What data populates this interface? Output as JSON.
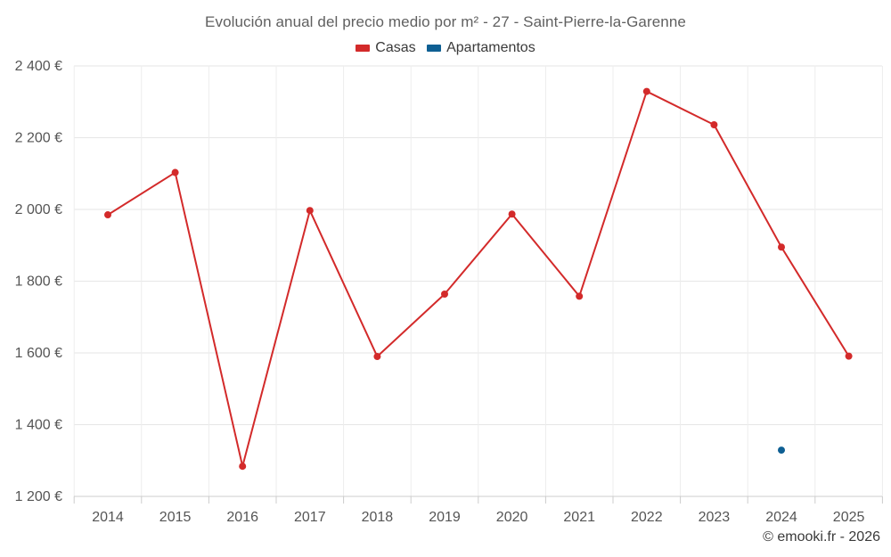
{
  "chart_data": {
    "type": "line",
    "title": "Evolución anual del precio medio por m² - 27 - Saint-Pierre-la-Garenne",
    "xlabel": "",
    "ylabel": "",
    "categories": [
      "2014",
      "2015",
      "2016",
      "2017",
      "2018",
      "2019",
      "2020",
      "2021",
      "2022",
      "2023",
      "2024",
      "2025"
    ],
    "series": [
      {
        "name": "Casas",
        "color": "#d32a2a",
        "values": [
          1985,
          2103,
          1284,
          1997,
          1590,
          1764,
          1987,
          1758,
          2329,
          2236,
          1895,
          1591
        ]
      },
      {
        "name": "Apartamentos",
        "color": "#0e5f93",
        "values": [
          null,
          null,
          null,
          null,
          null,
          null,
          null,
          null,
          null,
          null,
          1329,
          null
        ]
      }
    ],
    "ylim": [
      1200,
      2400
    ],
    "y_ticks": [
      {
        "value": 2400,
        "label": "2 400 €"
      },
      {
        "value": 2200,
        "label": "2 200 €"
      },
      {
        "value": 2000,
        "label": "2 000 €"
      },
      {
        "value": 1800,
        "label": "1 800 €"
      },
      {
        "value": 1600,
        "label": "1 600 €"
      },
      {
        "value": 1400,
        "label": "1 400 €"
      },
      {
        "value": 1200,
        "label": "1 200 €"
      }
    ],
    "grid": true,
    "legend_position": "top-center"
  },
  "credit": "© emooki.fr - 2026"
}
